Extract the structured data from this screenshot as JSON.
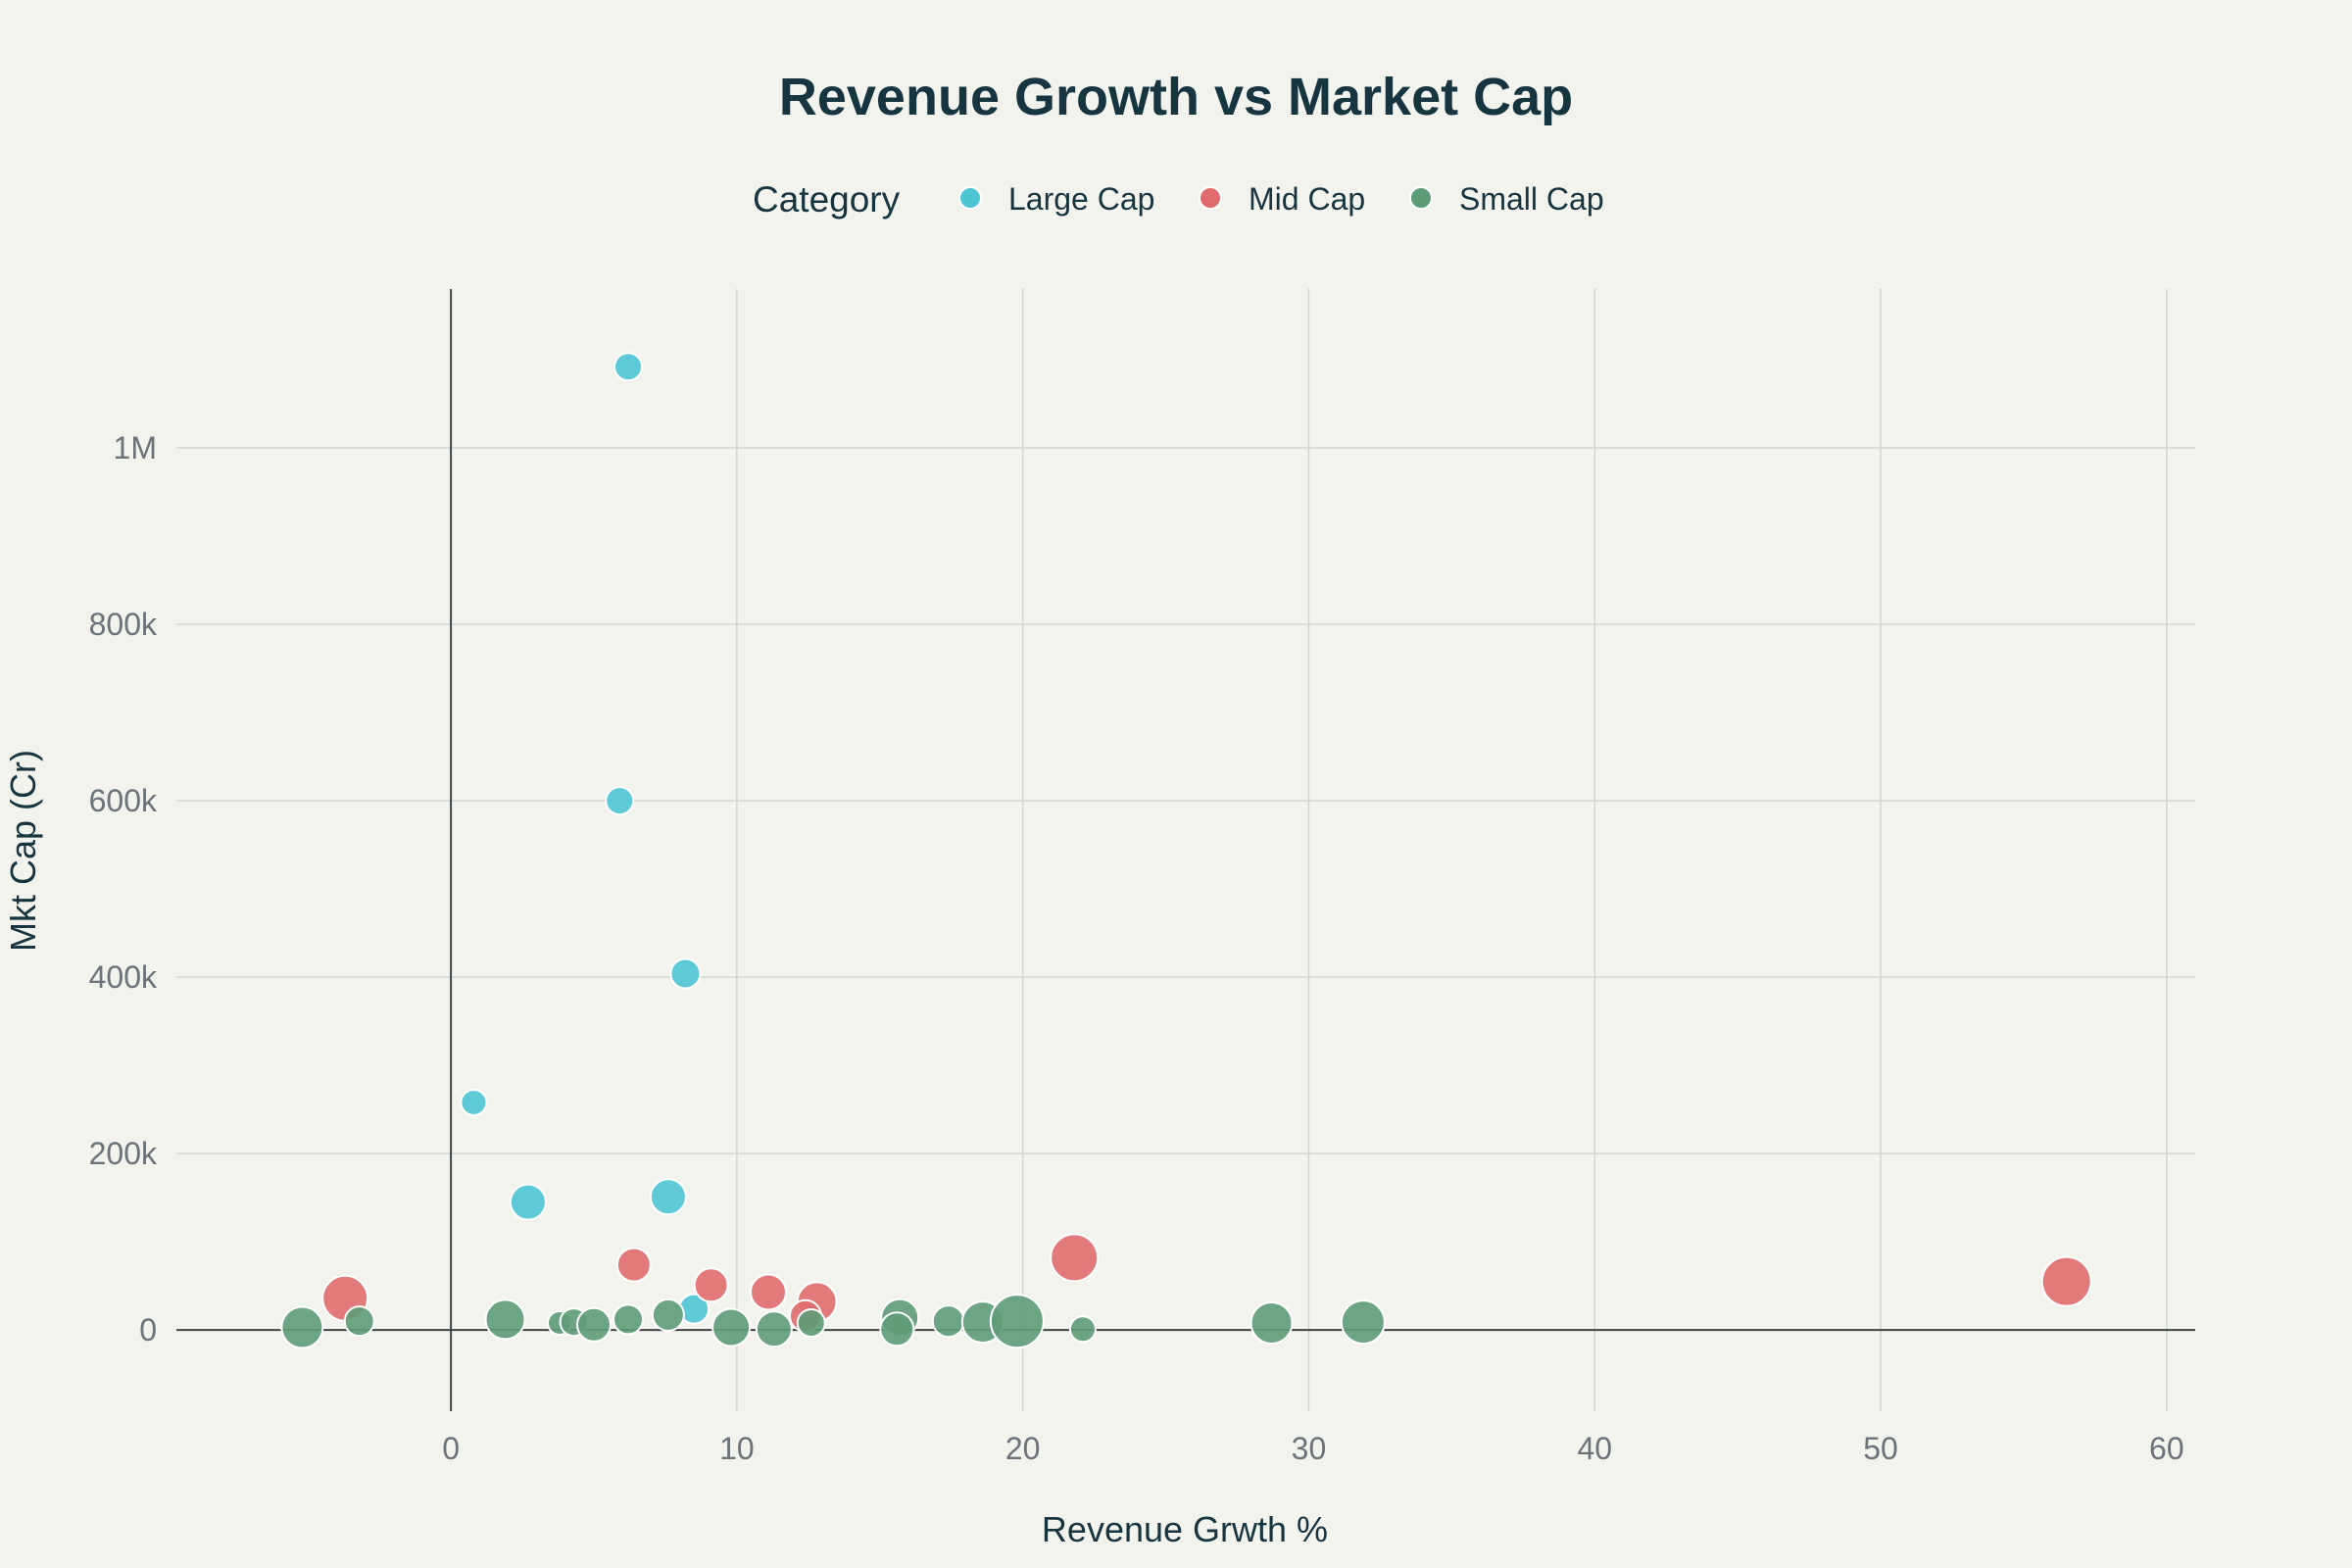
{
  "chart_data": {
    "type": "scatter",
    "title": "Revenue Growth vs Market Cap",
    "xlabel": "Revenue Grwth %",
    "ylabel": "Mkt Cap (Cr)",
    "xlim": [
      -9.6,
      61
    ],
    "ylim": [
      -92000,
      1180000
    ],
    "x_ticks": [
      0,
      10,
      20,
      30,
      40,
      50,
      60
    ],
    "x_tick_labels": [
      "0",
      "10",
      "20",
      "30",
      "40",
      "50",
      "60"
    ],
    "y_ticks": [
      0,
      200000,
      400000,
      600000,
      800000,
      1000000
    ],
    "y_tick_labels": [
      "0",
      "200k",
      "400k",
      "600k",
      "800k",
      "1M"
    ],
    "grid": true,
    "legend": {
      "title": "Category",
      "position": "top-center"
    },
    "series": [
      {
        "name": "Large Cap",
        "color": "#4ec5d4",
        "points": [
          {
            "x": 6.2,
            "y": 1092000,
            "s": 14
          },
          {
            "x": 5.9,
            "y": 600000,
            "s": 14
          },
          {
            "x": 8.2,
            "y": 404000,
            "s": 15
          },
          {
            "x": 0.8,
            "y": 258000,
            "s": 13
          },
          {
            "x": 2.7,
            "y": 145000,
            "s": 18
          },
          {
            "x": 7.6,
            "y": 151000,
            "s": 18
          },
          {
            "x": 8.5,
            "y": 24000,
            "s": 15
          }
        ]
      },
      {
        "name": "Mid Cap",
        "color": "#e06b6e",
        "points": [
          {
            "x": -3.7,
            "y": 36000,
            "s": 23
          },
          {
            "x": 6.4,
            "y": 74000,
            "s": 17
          },
          {
            "x": 9.1,
            "y": 51000,
            "s": 17
          },
          {
            "x": 11.1,
            "y": 43000,
            "s": 18
          },
          {
            "x": 12.8,
            "y": 32000,
            "s": 20
          },
          {
            "x": 12.4,
            "y": 16000,
            "s": 16
          },
          {
            "x": 21.8,
            "y": 82000,
            "s": 24
          },
          {
            "x": 56.5,
            "y": 55000,
            "s": 25
          }
        ]
      },
      {
        "name": "Small Cap",
        "color": "#5e9c78",
        "points": [
          {
            "x": -5.2,
            "y": 3000,
            "s": 21
          },
          {
            "x": -3.2,
            "y": 10000,
            "s": 15
          },
          {
            "x": 1.9,
            "y": 12000,
            "s": 20
          },
          {
            "x": 3.8,
            "y": 8000,
            "s": 12
          },
          {
            "x": 4.3,
            "y": 9000,
            "s": 14
          },
          {
            "x": 5.0,
            "y": 6000,
            "s": 17
          },
          {
            "x": 6.2,
            "y": 12000,
            "s": 15
          },
          {
            "x": 7.6,
            "y": 17000,
            "s": 16
          },
          {
            "x": 9.8,
            "y": 3000,
            "s": 19
          },
          {
            "x": 11.3,
            "y": 1000,
            "s": 18
          },
          {
            "x": 12.6,
            "y": 8000,
            "s": 14
          },
          {
            "x": 15.7,
            "y": 14000,
            "s": 19
          },
          {
            "x": 15.6,
            "y": 1000,
            "s": 17
          },
          {
            "x": 17.4,
            "y": 10000,
            "s": 16
          },
          {
            "x": 18.6,
            "y": 9000,
            "s": 21
          },
          {
            "x": 19.8,
            "y": 10000,
            "s": 27
          },
          {
            "x": 22.1,
            "y": 1000,
            "s": 13
          },
          {
            "x": 28.7,
            "y": 8000,
            "s": 21
          },
          {
            "x": 31.9,
            "y": 9000,
            "s": 22
          }
        ]
      }
    ]
  }
}
